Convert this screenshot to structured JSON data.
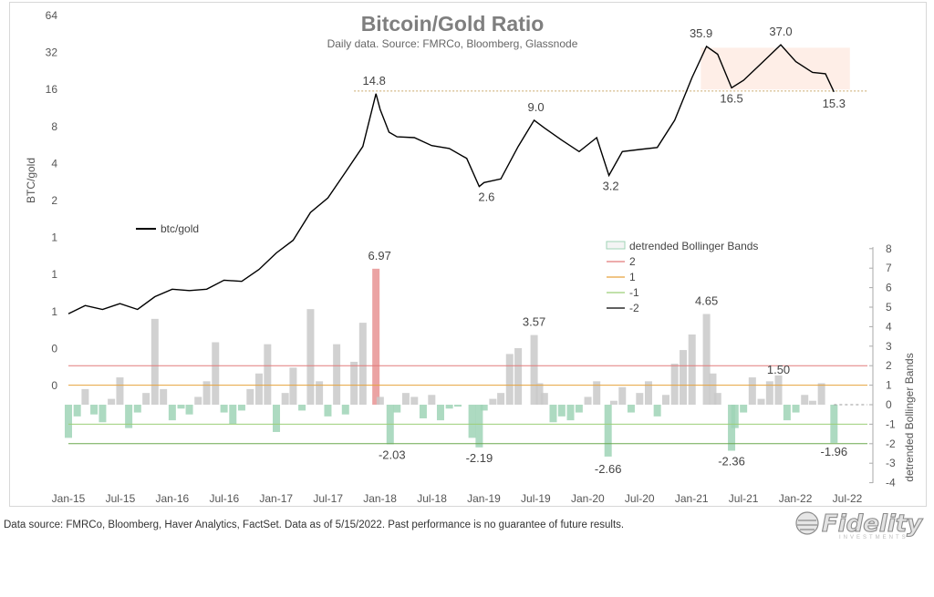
{
  "chart_data": {
    "type": "line",
    "title": "Bitcoin/Gold Ratio",
    "subtitle": "Daily data.  Source: FMRCo, Bloomberg, Glassnode",
    "x_tick_labels": [
      "Jan-15",
      "Jul-15",
      "Jan-16",
      "Jul-16",
      "Jan-17",
      "Jul-17",
      "Jan-18",
      "Jul-18",
      "Jan-19",
      "Jul-19",
      "Jan-20",
      "Jul-20",
      "Jan-21",
      "Jul-21",
      "Jan-22",
      "Jul-22"
    ],
    "top_panel": {
      "ylabel": "BTC/gold",
      "scale": "log2",
      "y_tick_labels": [
        "64",
        "32",
        "16",
        "8",
        "4",
        "2",
        "1",
        "1",
        "1",
        "0",
        "0"
      ],
      "series": [
        {
          "name": "btc/gold",
          "color": "#000000",
          "points": [
            [
              "2015-01-01",
              0.24
            ],
            [
              "2015-03-01",
              0.28
            ],
            [
              "2015-05-01",
              0.26
            ],
            [
              "2015-07-01",
              0.29
            ],
            [
              "2015-09-01",
              0.26
            ],
            [
              "2015-11-01",
              0.33
            ],
            [
              "2016-01-01",
              0.38
            ],
            [
              "2016-03-01",
              0.37
            ],
            [
              "2016-05-01",
              0.38
            ],
            [
              "2016-07-01",
              0.45
            ],
            [
              "2016-09-01",
              0.44
            ],
            [
              "2016-11-01",
              0.55
            ],
            [
              "2017-01-01",
              0.75
            ],
            [
              "2017-03-01",
              0.95
            ],
            [
              "2017-05-01",
              1.6
            ],
            [
              "2017-07-01",
              2.1
            ],
            [
              "2017-09-01",
              3.4
            ],
            [
              "2017-11-01",
              5.5
            ],
            [
              "2017-12-17",
              14.8
            ],
            [
              "2018-01-01",
              11.0
            ],
            [
              "2018-02-01",
              7.2
            ],
            [
              "2018-03-01",
              6.6
            ],
            [
              "2018-05-01",
              6.5
            ],
            [
              "2018-07-01",
              5.6
            ],
            [
              "2018-09-01",
              5.3
            ],
            [
              "2018-11-01",
              4.4
            ],
            [
              "2018-12-15",
              2.6
            ],
            [
              "2019-01-01",
              2.8
            ],
            [
              "2019-03-01",
              3.0
            ],
            [
              "2019-05-01",
              5.5
            ],
            [
              "2019-06-26",
              9.0
            ],
            [
              "2019-08-01",
              7.8
            ],
            [
              "2019-10-01",
              6.2
            ],
            [
              "2019-12-01",
              5.0
            ],
            [
              "2020-02-01",
              6.5
            ],
            [
              "2020-03-15",
              3.2
            ],
            [
              "2020-05-01",
              5.0
            ],
            [
              "2020-07-01",
              5.2
            ],
            [
              "2020-09-01",
              5.4
            ],
            [
              "2020-11-01",
              9.0
            ],
            [
              "2021-01-01",
              20.0
            ],
            [
              "2021-02-21",
              35.9
            ],
            [
              "2021-04-01",
              31.0
            ],
            [
              "2021-05-20",
              16.5
            ],
            [
              "2021-07-01",
              19.0
            ],
            [
              "2021-09-01",
              26.0
            ],
            [
              "2021-11-09",
              37.0
            ],
            [
              "2022-01-01",
              27.0
            ],
            [
              "2022-03-01",
              22.0
            ],
            [
              "2022-04-15",
              21.5
            ],
            [
              "2022-05-15",
              15.3
            ]
          ]
        }
      ],
      "annotations": [
        {
          "x": "2017-12-17",
          "value": 14.8,
          "label": "14.8"
        },
        {
          "x": "2018-12-15",
          "value": 2.6,
          "label": "2.6"
        },
        {
          "x": "2019-06-26",
          "value": 9.0,
          "label": "9.0"
        },
        {
          "x": "2020-03-15",
          "value": 3.2,
          "label": "3.2"
        },
        {
          "x": "2021-02-21",
          "value": 35.9,
          "label": "35.9"
        },
        {
          "x": "2021-05-20",
          "value": 16.5,
          "label": "16.5"
        },
        {
          "x": "2021-11-09",
          "value": 37.0,
          "label": "37.0"
        },
        {
          "x": "2022-05-15",
          "value": 15.3,
          "label": "15.3"
        }
      ],
      "reference_line": {
        "value": 15.3,
        "style": "dotted",
        "x_from": "2017-10-01"
      },
      "highlight_region": {
        "x_from": "2021-02-01",
        "x_to": "2022-07-10",
        "y_from": 16,
        "y_to": 35,
        "color": "#fde8df"
      }
    },
    "bottom_panel": {
      "ylabel": "detrended Bollinger Bands",
      "ylim": [
        -4,
        8
      ],
      "y_tick_labels": [
        "8",
        "7",
        "6",
        "5",
        "4",
        "3",
        "2",
        "1",
        "0",
        "-1",
        "-2",
        "-3",
        "-4"
      ],
      "fill_series": {
        "name": "detrended Bollinger Bands",
        "positive_color": "#c9c9c9",
        "negative_color": "#9fd3b6",
        "extreme_color": "#e89393",
        "points": [
          [
            "2015-01-01",
            -1.7
          ],
          [
            "2015-02-01",
            -0.6
          ],
          [
            "2015-03-01",
            0.8
          ],
          [
            "2015-04-01",
            -0.5
          ],
          [
            "2015-05-01",
            -0.9
          ],
          [
            "2015-06-01",
            0.3
          ],
          [
            "2015-07-01",
            1.4
          ],
          [
            "2015-08-01",
            -1.2
          ],
          [
            "2015-09-01",
            -0.4
          ],
          [
            "2015-10-01",
            0.6
          ],
          [
            "2015-11-01",
            4.4
          ],
          [
            "2015-12-01",
            0.8
          ],
          [
            "2016-01-01",
            -0.8
          ],
          [
            "2016-02-01",
            -0.2
          ],
          [
            "2016-03-01",
            -0.5
          ],
          [
            "2016-04-01",
            0.4
          ],
          [
            "2016-05-01",
            1.2
          ],
          [
            "2016-06-01",
            3.2
          ],
          [
            "2016-07-01",
            -0.4
          ],
          [
            "2016-08-01",
            -1.0
          ],
          [
            "2016-09-01",
            -0.3
          ],
          [
            "2016-10-01",
            0.8
          ],
          [
            "2016-11-01",
            1.6
          ],
          [
            "2016-12-01",
            3.1
          ],
          [
            "2017-01-01",
            -1.4
          ],
          [
            "2017-02-01",
            0.6
          ],
          [
            "2017-03-01",
            1.9
          ],
          [
            "2017-04-01",
            -0.3
          ],
          [
            "2017-05-01",
            4.9
          ],
          [
            "2017-06-01",
            1.2
          ],
          [
            "2017-07-01",
            -0.6
          ],
          [
            "2017-08-01",
            3.1
          ],
          [
            "2017-09-01",
            -0.5
          ],
          [
            "2017-10-01",
            2.2
          ],
          [
            "2017-11-01",
            4.2
          ],
          [
            "2017-12-17",
            6.97
          ],
          [
            "2018-01-01",
            0.4
          ],
          [
            "2018-02-05",
            -2.03
          ],
          [
            "2018-03-01",
            -0.4
          ],
          [
            "2018-04-01",
            0.6
          ],
          [
            "2018-05-01",
            0.4
          ],
          [
            "2018-06-01",
            -0.7
          ],
          [
            "2018-07-01",
            0.5
          ],
          [
            "2018-08-01",
            -0.8
          ],
          [
            "2018-09-01",
            -0.2
          ],
          [
            "2018-10-01",
            -0.1
          ],
          [
            "2018-11-20",
            -1.7
          ],
          [
            "2018-12-15",
            -2.19
          ],
          [
            "2019-01-01",
            -0.3
          ],
          [
            "2019-02-01",
            0.3
          ],
          [
            "2019-03-01",
            0.6
          ],
          [
            "2019-04-01",
            2.6
          ],
          [
            "2019-05-01",
            2.9
          ],
          [
            "2019-06-26",
            3.57
          ],
          [
            "2019-07-15",
            1.1
          ],
          [
            "2019-08-01",
            0.6
          ],
          [
            "2019-09-01",
            -0.9
          ],
          [
            "2019-10-01",
            -0.6
          ],
          [
            "2019-11-01",
            -0.8
          ],
          [
            "2019-12-01",
            -0.4
          ],
          [
            "2020-01-01",
            0.4
          ],
          [
            "2020-02-01",
            1.2
          ],
          [
            "2020-03-12",
            -2.66
          ],
          [
            "2020-04-01",
            0.2
          ],
          [
            "2020-05-01",
            0.9
          ],
          [
            "2020-06-01",
            -0.4
          ],
          [
            "2020-07-01",
            0.6
          ],
          [
            "2020-08-01",
            1.2
          ],
          [
            "2020-09-01",
            -0.6
          ],
          [
            "2020-10-01",
            0.5
          ],
          [
            "2020-11-01",
            2.1
          ],
          [
            "2020-12-01",
            2.8
          ],
          [
            "2021-01-01",
            3.6
          ],
          [
            "2021-02-21",
            4.65
          ],
          [
            "2021-03-15",
            1.6
          ],
          [
            "2021-04-01",
            0.6
          ],
          [
            "2021-05-20",
            -2.36
          ],
          [
            "2021-06-01",
            -1.2
          ],
          [
            "2021-07-01",
            -0.4
          ],
          [
            "2021-08-01",
            1.4
          ],
          [
            "2021-09-01",
            0.3
          ],
          [
            "2021-10-01",
            1.2
          ],
          [
            "2021-11-01",
            1.5
          ],
          [
            "2021-12-01",
            -0.8
          ],
          [
            "2022-01-01",
            -0.4
          ],
          [
            "2022-02-01",
            0.5
          ],
          [
            "2022-03-01",
            0.2
          ],
          [
            "2022-04-01",
            1.1
          ],
          [
            "2022-05-15",
            -1.96
          ]
        ]
      },
      "bands": [
        {
          "name": "2",
          "value": 2,
          "color": "#e27b7b"
        },
        {
          "name": "1",
          "value": 1,
          "color": "#e6a23c"
        },
        {
          "name": "-1",
          "value": -1,
          "color": "#9ccf78"
        },
        {
          "name": "-2",
          "value": -2,
          "color": "#6aa84f"
        }
      ],
      "zero_line": {
        "value": 0,
        "style": "dashed",
        "x_from": "2022-05-15"
      },
      "annotations": [
        {
          "x": "2017-12-17",
          "value": 6.97,
          "label": "6.97"
        },
        {
          "x": "2018-02-05",
          "value": -2.03,
          "label": "-2.03"
        },
        {
          "x": "2018-12-15",
          "value": -2.19,
          "label": "-2.19"
        },
        {
          "x": "2019-06-26",
          "value": 3.57,
          "label": "3.57"
        },
        {
          "x": "2020-03-12",
          "value": -2.66,
          "label": "-2.66"
        },
        {
          "x": "2021-02-21",
          "value": 4.65,
          "label": "4.65"
        },
        {
          "x": "2021-05-20",
          "value": -2.36,
          "label": "-2.36"
        },
        {
          "x": "2021-11-01",
          "value": 1.5,
          "label": "1.50"
        },
        {
          "x": "2022-05-15",
          "value": -1.96,
          "label": "-1.96"
        }
      ]
    },
    "legend": {
      "top": [
        {
          "label": "btc/gold",
          "color": "#000000"
        }
      ],
      "bottom": [
        {
          "label": "detrended Bollinger Bands",
          "kind": "box",
          "color": "#9fd3b6"
        },
        {
          "label": "2",
          "kind": "line",
          "color": "#e27b7b"
        },
        {
          "label": "1",
          "kind": "line",
          "color": "#e6a23c"
        },
        {
          "label": "-1",
          "kind": "line",
          "color": "#9ccf78"
        },
        {
          "label": "-2",
          "kind": "line",
          "color": "#000000"
        }
      ]
    }
  },
  "footer": {
    "source_text": "Data source: FMRCo, Bloomberg, Haver Analytics, FactSet. Data as of 5/15/2022. Past performance is no guarantee of future results.",
    "logo_text": "Fidelity",
    "logo_subtext": "INVESTMENTS"
  }
}
